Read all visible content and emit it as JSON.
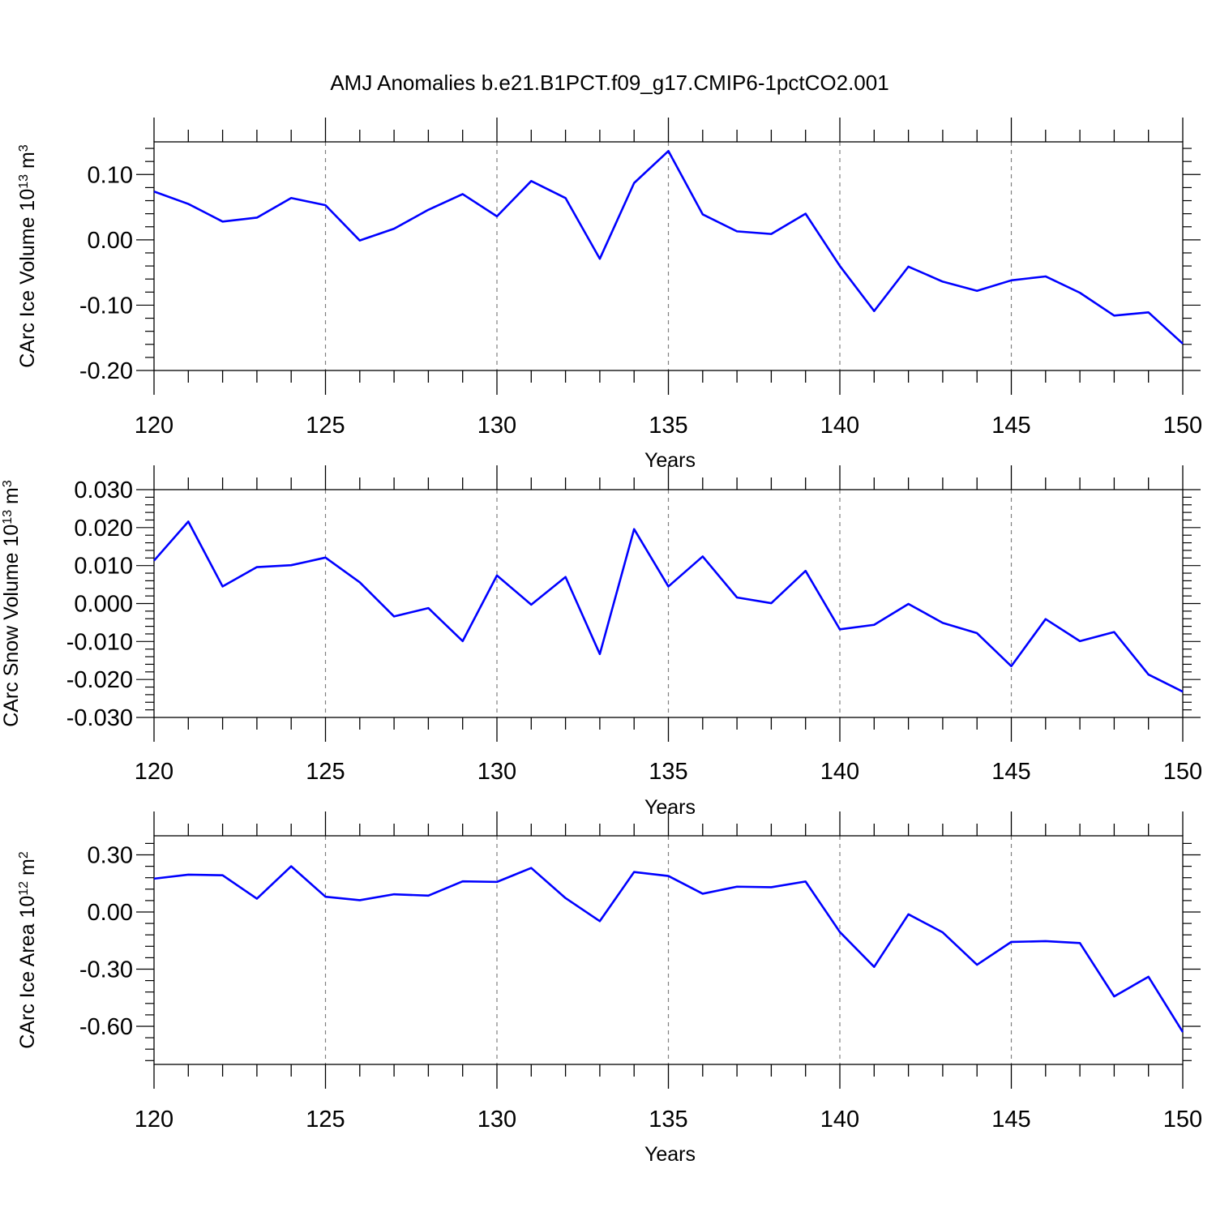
{
  "title": "AMJ Anomalies b.e21.B1PCT.f09_g17.CMIP6-1pctCO2.001",
  "colors": {
    "line": "#0000ff",
    "axis": "#000000",
    "grid": "#808080",
    "background": "#ffffff"
  },
  "chart_data": [
    {
      "type": "line",
      "ylabel": {
        "prefix": "CArc Ice Volume 10",
        "exp": "13",
        "unit": " m",
        "unit_exp": "3"
      },
      "xlabel": "Years",
      "xlim": [
        120,
        150
      ],
      "ylim": [
        -0.2,
        0.15
      ],
      "xticks": [
        120,
        125,
        130,
        135,
        140,
        145,
        150
      ],
      "xtick_labels": [
        "120",
        "125",
        "130",
        "135",
        "140",
        "145",
        "150"
      ],
      "yticks": [
        -0.2,
        -0.1,
        0.0,
        0.1
      ],
      "ytick_labels": [
        "-0.20",
        "-0.10",
        "0.00",
        "0.10"
      ],
      "yminor_step": 0.02,
      "grid_x": true,
      "x": [
        120,
        121,
        122,
        123,
        124,
        125,
        126,
        127,
        128,
        129,
        130,
        131,
        132,
        133,
        134,
        135,
        136,
        137,
        138,
        139,
        140,
        141,
        142,
        143,
        144,
        145,
        146,
        147,
        148,
        149,
        150
      ],
      "values": [
        0.074,
        0.055,
        0.028,
        0.034,
        0.064,
        0.053,
        -0.001,
        0.017,
        0.046,
        0.07,
        0.036,
        0.09,
        0.064,
        -0.029,
        0.087,
        0.136,
        0.039,
        0.013,
        0.009,
        0.04,
        -0.04,
        -0.109,
        -0.041,
        -0.064,
        -0.078,
        -0.062,
        -0.056,
        -0.081,
        -0.116,
        -0.111,
        -0.159
      ]
    },
    {
      "type": "line",
      "ylabel": {
        "prefix": "CArc Snow Volume 10",
        "exp": "13",
        "unit": " m",
        "unit_exp": "3"
      },
      "xlabel": "Years",
      "xlim": [
        120,
        150
      ],
      "ylim": [
        -0.03,
        0.03
      ],
      "xticks": [
        120,
        125,
        130,
        135,
        140,
        145,
        150
      ],
      "xtick_labels": [
        "120",
        "125",
        "130",
        "135",
        "140",
        "145",
        "150"
      ],
      "yticks": [
        -0.03,
        -0.02,
        -0.01,
        0.0,
        0.01,
        0.02,
        0.03
      ],
      "ytick_labels": [
        "-0.030",
        "-0.020",
        "-0.010",
        "0.000",
        "0.010",
        "0.020",
        "0.030"
      ],
      "yminor_step": 0.002,
      "grid_x": true,
      "x": [
        120,
        121,
        122,
        123,
        124,
        125,
        126,
        127,
        128,
        129,
        130,
        131,
        132,
        133,
        134,
        135,
        136,
        137,
        138,
        139,
        140,
        141,
        142,
        143,
        144,
        145,
        146,
        147,
        148,
        149,
        150
      ],
      "values": [
        0.0113,
        0.0216,
        0.0045,
        0.0096,
        0.0101,
        0.0121,
        0.0056,
        -0.0034,
        -0.0012,
        -0.0099,
        0.0074,
        -0.0003,
        0.007,
        -0.0133,
        0.0196,
        0.0045,
        0.0124,
        0.0016,
        0.0001,
        0.0086,
        -0.0068,
        -0.0056,
        -0.0001,
        -0.0051,
        -0.0078,
        -0.0165,
        -0.0041,
        -0.0099,
        -0.0075,
        -0.0187,
        -0.0232
      ]
    },
    {
      "type": "line",
      "ylabel": {
        "prefix": "CArc Ice Area 10",
        "exp": "12",
        "unit": " m",
        "unit_exp": "2"
      },
      "xlabel": "Years",
      "xlim": [
        120,
        150
      ],
      "ylim": [
        -0.8,
        0.4
      ],
      "xticks": [
        120,
        125,
        130,
        135,
        140,
        145,
        150
      ],
      "xtick_labels": [
        "120",
        "125",
        "130",
        "135",
        "140",
        "145",
        "150"
      ],
      "yticks": [
        -0.6,
        -0.3,
        0.0,
        0.3
      ],
      "ytick_labels": [
        "-0.60",
        "-0.30",
        "0.00",
        "0.30"
      ],
      "yminor_step": 0.06,
      "grid_x": true,
      "x": [
        120,
        121,
        122,
        123,
        124,
        125,
        126,
        127,
        128,
        129,
        130,
        131,
        132,
        133,
        134,
        135,
        136,
        137,
        138,
        139,
        140,
        141,
        142,
        143,
        144,
        145,
        146,
        147,
        148,
        149,
        150
      ],
      "values": [
        0.175,
        0.196,
        0.193,
        0.07,
        0.24,
        0.08,
        0.062,
        0.093,
        0.086,
        0.161,
        0.158,
        0.231,
        0.073,
        -0.048,
        0.21,
        0.189,
        0.096,
        0.133,
        0.13,
        0.16,
        -0.105,
        -0.288,
        -0.012,
        -0.107,
        -0.277,
        -0.157,
        -0.153,
        -0.163,
        -0.443,
        -0.34,
        -0.63
      ]
    }
  ]
}
